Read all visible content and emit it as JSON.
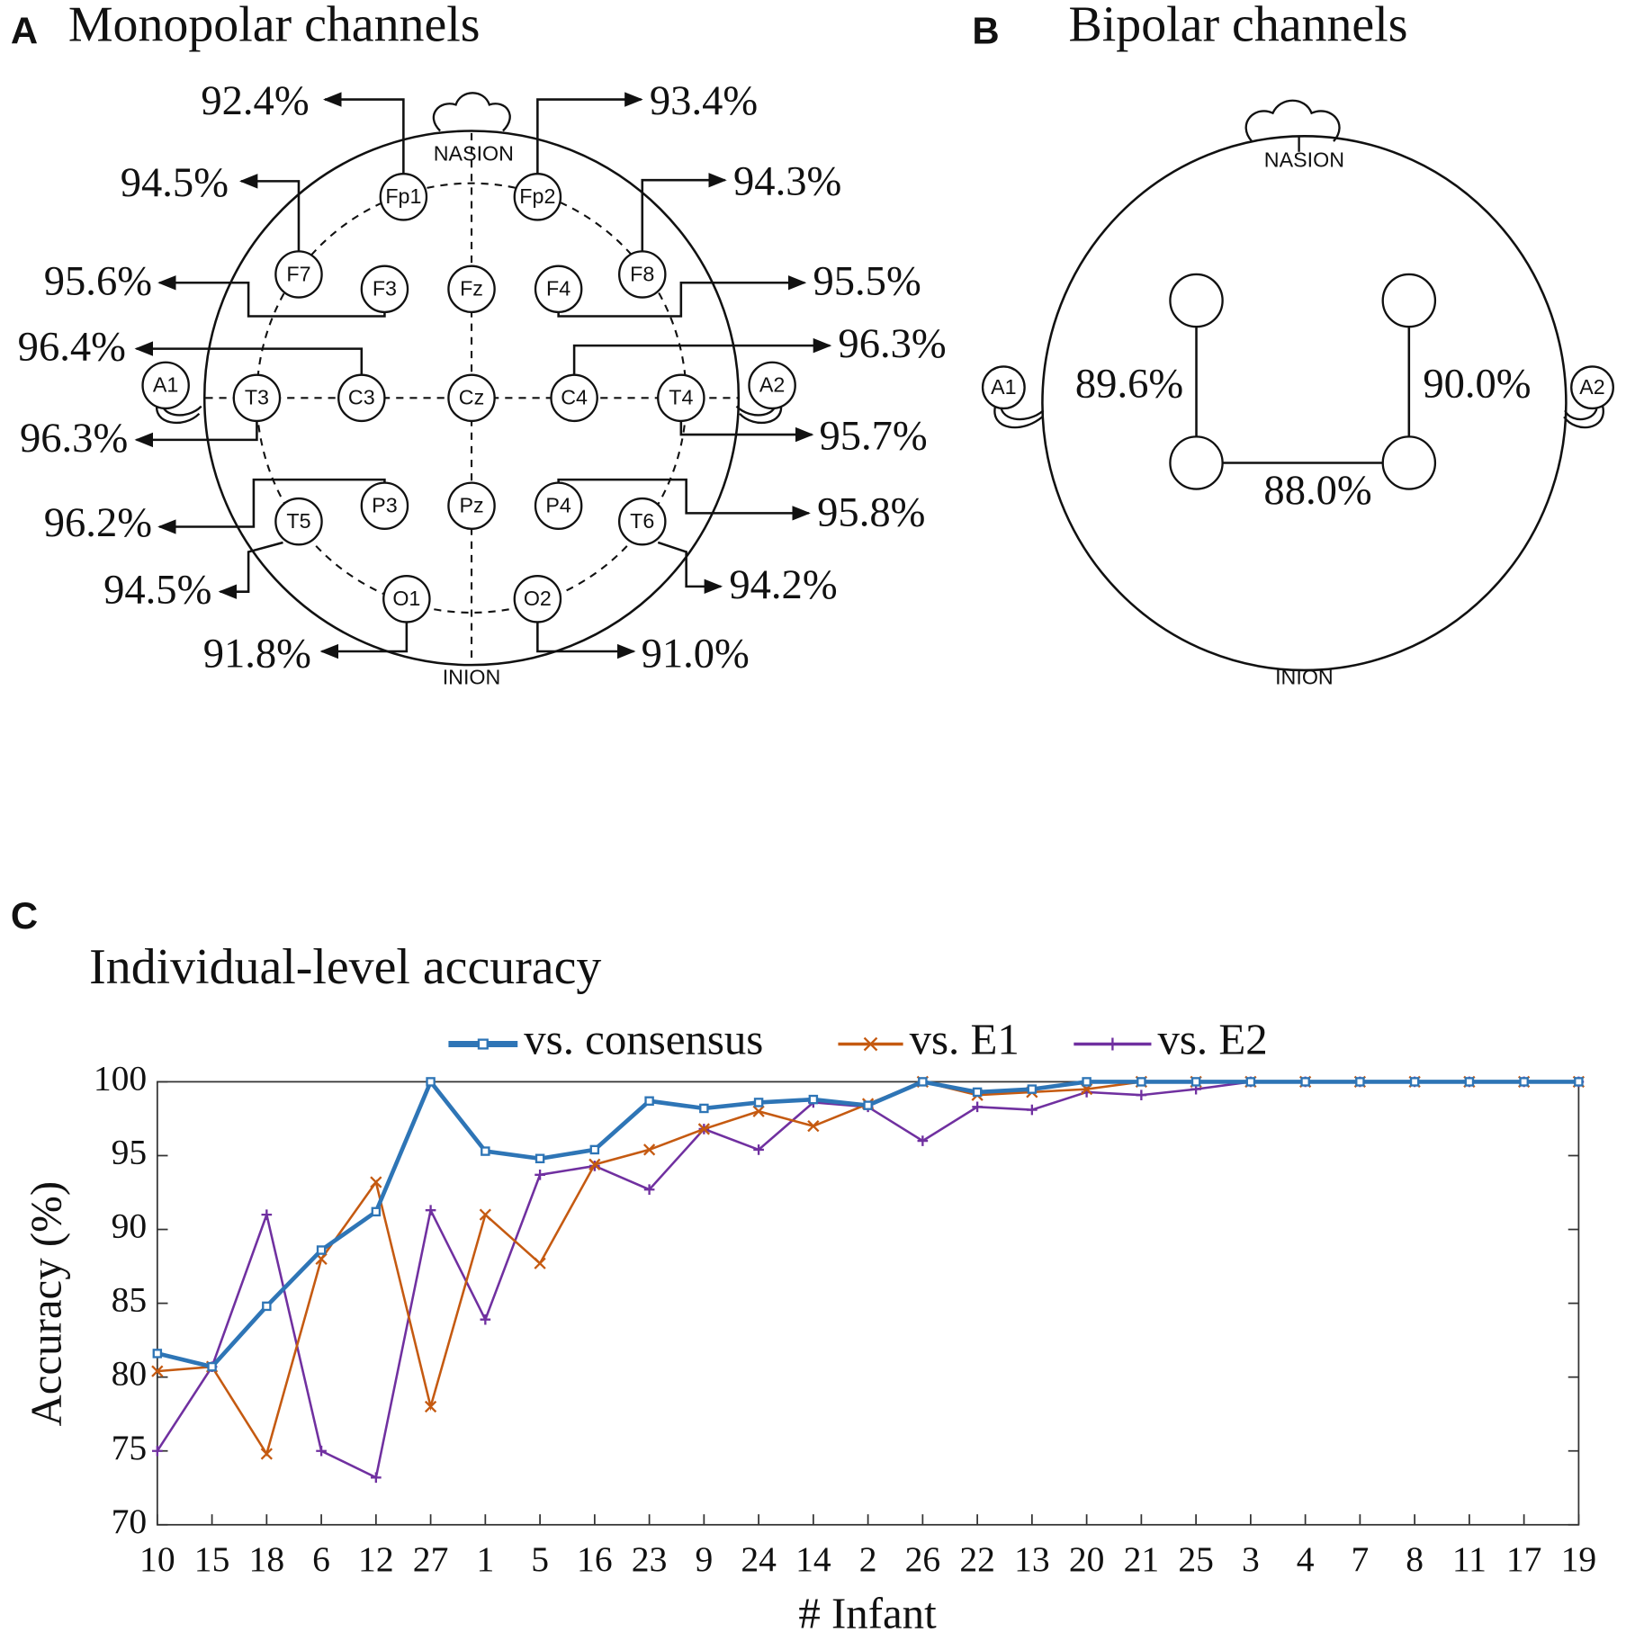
{
  "panel_a": {
    "label": "A",
    "title": "Monopolar channels",
    "nasion": "NASION",
    "inion": "INION",
    "electrodes": [
      {
        "name": "Fp1",
        "accuracy": "92.4%"
      },
      {
        "name": "Fp2",
        "accuracy": "93.4%"
      },
      {
        "name": "F7",
        "accuracy": "94.5%"
      },
      {
        "name": "F8",
        "accuracy": "94.3%"
      },
      {
        "name": "F3",
        "accuracy": "95.6%"
      },
      {
        "name": "F4",
        "accuracy": "95.5%"
      },
      {
        "name": "C3",
        "accuracy": "96.4%"
      },
      {
        "name": "C4",
        "accuracy": "96.3%"
      },
      {
        "name": "T3",
        "accuracy": "96.3%"
      },
      {
        "name": "T4",
        "accuracy": "95.7%"
      },
      {
        "name": "P3",
        "accuracy": "96.2%"
      },
      {
        "name": "P4",
        "accuracy": "95.8%"
      },
      {
        "name": "T5",
        "accuracy": "94.5%"
      },
      {
        "name": "T6",
        "accuracy": "94.2%"
      },
      {
        "name": "O1",
        "accuracy": "91.8%"
      },
      {
        "name": "O2",
        "accuracy": "91.0%"
      },
      {
        "name": "Fz"
      },
      {
        "name": "Cz"
      },
      {
        "name": "Pz"
      },
      {
        "name": "A1"
      },
      {
        "name": "A2"
      }
    ]
  },
  "panel_b": {
    "label": "B",
    "title": "Bipolar channels",
    "nasion": "NASION",
    "inion": "INION",
    "ears": [
      "A1",
      "A2"
    ],
    "pair_accuracies": [
      "89.6%",
      "90.0%",
      "88.0%"
    ]
  },
  "chart_data": {
    "type": "line",
    "panel_label": "C",
    "title": "Individual-level accuracy",
    "x_label": "# Infant",
    "y_label": "Accuracy (%)",
    "categories": [
      "10",
      "15",
      "18",
      "6",
      "12",
      "27",
      "1",
      "5",
      "16",
      "23",
      "9",
      "24",
      "14",
      "2",
      "26",
      "22",
      "13",
      "20",
      "21",
      "25",
      "3",
      "4",
      "7",
      "8",
      "11",
      "17",
      "19"
    ],
    "ylim": [
      70,
      100
    ],
    "yticks": [
      70,
      75,
      80,
      85,
      90,
      95,
      100
    ],
    "grid": false,
    "legend": "top",
    "series": [
      {
        "name": "vs. consensus",
        "color": "#2e75b6",
        "marker": "square",
        "values": [
          81.6,
          80.7,
          84.8,
          88.6,
          91.2,
          100,
          95.3,
          94.8,
          95.4,
          98.7,
          98.2,
          98.6,
          98.8,
          98.4,
          100,
          99.3,
          99.5,
          100,
          100,
          100,
          100,
          100,
          100,
          100,
          100,
          100,
          100
        ]
      },
      {
        "name": "vs. E1",
        "color": "#c55a11",
        "marker": "x",
        "values": [
          80.4,
          80.7,
          74.8,
          88.0,
          93.2,
          78.0,
          91.0,
          87.7,
          94.4,
          95.4,
          96.8,
          98.0,
          97.0,
          98.5,
          100,
          99.1,
          99.3,
          99.5,
          100,
          100,
          100,
          100,
          100,
          100,
          100,
          100,
          100
        ]
      },
      {
        "name": "vs. E2",
        "color": "#7030a0",
        "marker": "plus",
        "values": [
          75.0,
          80.7,
          91.0,
          75.0,
          73.2,
          91.3,
          83.9,
          93.7,
          94.3,
          92.7,
          96.8,
          95.4,
          98.6,
          98.3,
          96.0,
          98.3,
          98.1,
          99.3,
          99.1,
          99.5,
          100,
          100,
          100,
          100,
          100,
          100,
          100
        ]
      }
    ]
  }
}
